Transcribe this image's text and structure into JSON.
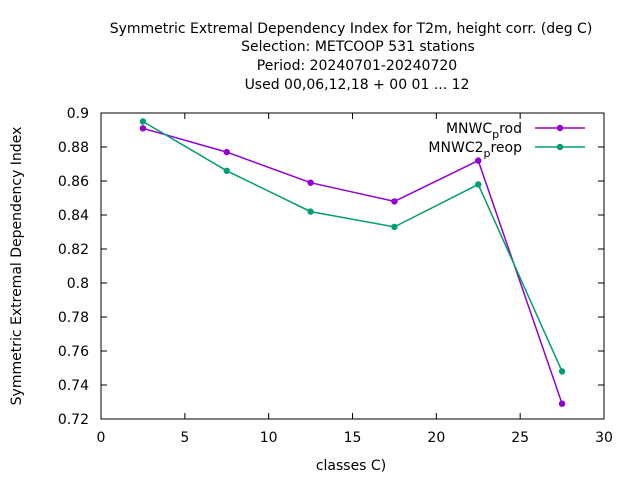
{
  "chart_data": {
    "type": "line",
    "title_lines": [
      "Symmetric Extremal Dependency Index  for T2m, height corr. (deg C)",
      "Selection: METCOOP    531 stations",
      "Period: 20240701-20240720",
      "Used  00,06,12,18 + 00 01 ... 12"
    ],
    "xlabel": "classes C)",
    "ylabel": "Symmetric Extremal Dependency Index",
    "xlim": [
      0,
      30
    ],
    "ylim": [
      0.72,
      0.9
    ],
    "xticks": [
      0,
      5,
      10,
      15,
      20,
      25,
      30
    ],
    "xtick_labels": [
      "0",
      "5",
      "10",
      "15",
      "20",
      "25",
      "30"
    ],
    "yticks": [
      0.72,
      0.74,
      0.76,
      0.78,
      0.8,
      0.82,
      0.84,
      0.86,
      0.88,
      0.9
    ],
    "ytick_labels": [
      "0.72",
      "0.74",
      "0.76",
      "0.78",
      "0.8",
      "0.82",
      "0.84",
      "0.86",
      "0.88",
      "0.9"
    ],
    "grid": false,
    "legend_position": "top-right",
    "x": [
      2.5,
      7.5,
      12.5,
      17.5,
      22.5,
      27.5
    ],
    "series": [
      {
        "name_main": "MNWC",
        "name_sub": "p",
        "name_rest": "rod",
        "color": "#9400d3",
        "values": [
          0.891,
          0.877,
          0.859,
          0.848,
          0.872,
          0.729
        ]
      },
      {
        "name_main": "MNWC2",
        "name_sub": "p",
        "name_rest": "reop",
        "color": "#009e73",
        "values": [
          0.895,
          0.866,
          0.842,
          0.833,
          0.858,
          0.748
        ]
      }
    ]
  }
}
